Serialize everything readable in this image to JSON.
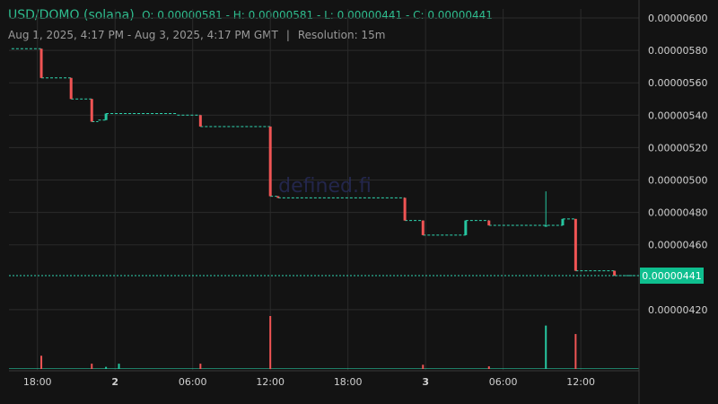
{
  "header": {
    "pair": "USD/DOMO (solana)",
    "ohlc": "O: 0.00000581 - H: 0.00000581 - L: 0.00000441 - C: 0.00000441",
    "range": "Aug 1, 2025, 4:17 PM - Aug 3, 2025, 4:17 PM GMT",
    "separator": "|",
    "resolution": "Resolution: 15m"
  },
  "watermark": "defined.fi",
  "colors": {
    "background": "#131313",
    "up": "#26c6a0",
    "down": "#f05454",
    "grid": "#2b2b2b",
    "price_line": "#2fd6b0",
    "last_label_bg": "#0fbf8f"
  },
  "chart_data": {
    "type": "candlestick",
    "title": "",
    "xlabel": "",
    "ylabel": "",
    "x_tick_labels": [
      "18:00",
      "2",
      "06:00",
      "12:00",
      "18:00",
      "3",
      "06:00",
      "12:00"
    ],
    "x_tick_times": [
      2,
      8,
      14,
      20,
      26,
      32,
      38,
      44
    ],
    "x_bold_ticks": [
      "2",
      "3"
    ],
    "y_tick_labels": [
      "0.00000420",
      "0.00000460",
      "0.00000480",
      "0.00000500",
      "0.00000520",
      "0.00000540",
      "0.00000560",
      "0.00000580",
      "0.00000600"
    ],
    "y_tick_values": [
      4.2,
      4.6,
      4.8,
      5.0,
      5.2,
      5.4,
      5.6,
      5.8,
      6.0
    ],
    "y_unit_note": "values in 1e-6",
    "ylim": [
      4.05,
      6.0
    ],
    "xlim": [
      -0.2,
      48.5
    ],
    "last_price": 4.41,
    "last_price_label": "0.00000441",
    "grid": true,
    "price_segments": [
      {
        "t0": 0.0,
        "t1": 2.3,
        "v": 5.81
      },
      {
        "t0": 2.3,
        "t1": 4.6,
        "v": 5.63
      },
      {
        "t0": 4.6,
        "t1": 6.2,
        "v": 5.5
      },
      {
        "t0": 6.2,
        "t1": 6.7,
        "v": 5.36
      },
      {
        "t0": 6.7,
        "t1": 7.3,
        "v": 5.37
      },
      {
        "t0": 7.3,
        "t1": 12.8,
        "v": 5.41
      },
      {
        "t0": 12.8,
        "t1": 14.6,
        "v": 5.4
      },
      {
        "t0": 14.6,
        "t1": 20.0,
        "v": 5.33
      },
      {
        "t0": 20.0,
        "t1": 20.6,
        "v": 4.9
      },
      {
        "t0": 20.6,
        "t1": 30.4,
        "v": 4.89
      },
      {
        "t0": 30.4,
        "t1": 31.8,
        "v": 4.75
      },
      {
        "t0": 31.8,
        "t1": 35.1,
        "v": 4.66
      },
      {
        "t0": 35.1,
        "t1": 36.9,
        "v": 4.75
      },
      {
        "t0": 36.9,
        "t1": 42.6,
        "v": 4.72
      },
      {
        "t0": 42.6,
        "t1": 43.6,
        "v": 4.76
      },
      {
        "t0": 43.6,
        "t1": 46.6,
        "v": 4.44
      },
      {
        "t0": 46.6,
        "t1": 48.5,
        "v": 4.41
      }
    ],
    "candles": [
      {
        "t": 2.3,
        "o": 5.81,
        "h": 5.81,
        "l": 5.63,
        "c": 5.63
      },
      {
        "t": 4.6,
        "o": 5.63,
        "h": 5.63,
        "l": 5.5,
        "c": 5.5
      },
      {
        "t": 6.2,
        "o": 5.5,
        "h": 5.5,
        "l": 5.36,
        "c": 5.36
      },
      {
        "t": 7.3,
        "o": 5.37,
        "h": 5.41,
        "l": 5.37,
        "c": 5.41
      },
      {
        "t": 14.6,
        "o": 5.4,
        "h": 5.4,
        "l": 5.33,
        "c": 5.33
      },
      {
        "t": 20.0,
        "o": 5.33,
        "h": 5.33,
        "l": 4.9,
        "c": 4.9
      },
      {
        "t": 20.6,
        "o": 4.9,
        "h": 4.9,
        "l": 4.89,
        "c": 4.89
      },
      {
        "t": 30.4,
        "o": 4.89,
        "h": 4.89,
        "l": 4.75,
        "c": 4.75
      },
      {
        "t": 31.8,
        "o": 4.75,
        "h": 4.75,
        "l": 4.66,
        "c": 4.66
      },
      {
        "t": 35.1,
        "o": 4.66,
        "h": 4.75,
        "l": 4.66,
        "c": 4.75
      },
      {
        "t": 36.9,
        "o": 4.75,
        "h": 4.75,
        "l": 4.72,
        "c": 4.72
      },
      {
        "t": 41.3,
        "o": 4.72,
        "h": 4.93,
        "l": 4.72,
        "c": 4.72
      },
      {
        "t": 42.6,
        "o": 4.72,
        "h": 4.76,
        "l": 4.72,
        "c": 4.76
      },
      {
        "t": 43.6,
        "o": 4.76,
        "h": 4.76,
        "l": 4.44,
        "c": 4.44
      },
      {
        "t": 46.6,
        "o": 4.44,
        "h": 4.44,
        "l": 4.41,
        "c": 4.41
      }
    ],
    "volume": {
      "max": 100,
      "bars": [
        {
          "t": 2.3,
          "v": 25,
          "dir": "down"
        },
        {
          "t": 6.2,
          "v": 10,
          "dir": "down"
        },
        {
          "t": 7.3,
          "v": 4,
          "dir": "up"
        },
        {
          "t": 8.3,
          "v": 10,
          "dir": "up"
        },
        {
          "t": 14.6,
          "v": 10,
          "dir": "down"
        },
        {
          "t": 20.0,
          "v": 100,
          "dir": "down"
        },
        {
          "t": 31.8,
          "v": 8,
          "dir": "down"
        },
        {
          "t": 36.9,
          "v": 5,
          "dir": "down"
        },
        {
          "t": 41.3,
          "v": 82,
          "dir": "up"
        },
        {
          "t": 43.6,
          "v": 66,
          "dir": "down"
        }
      ],
      "baseline_small": 2
    }
  }
}
